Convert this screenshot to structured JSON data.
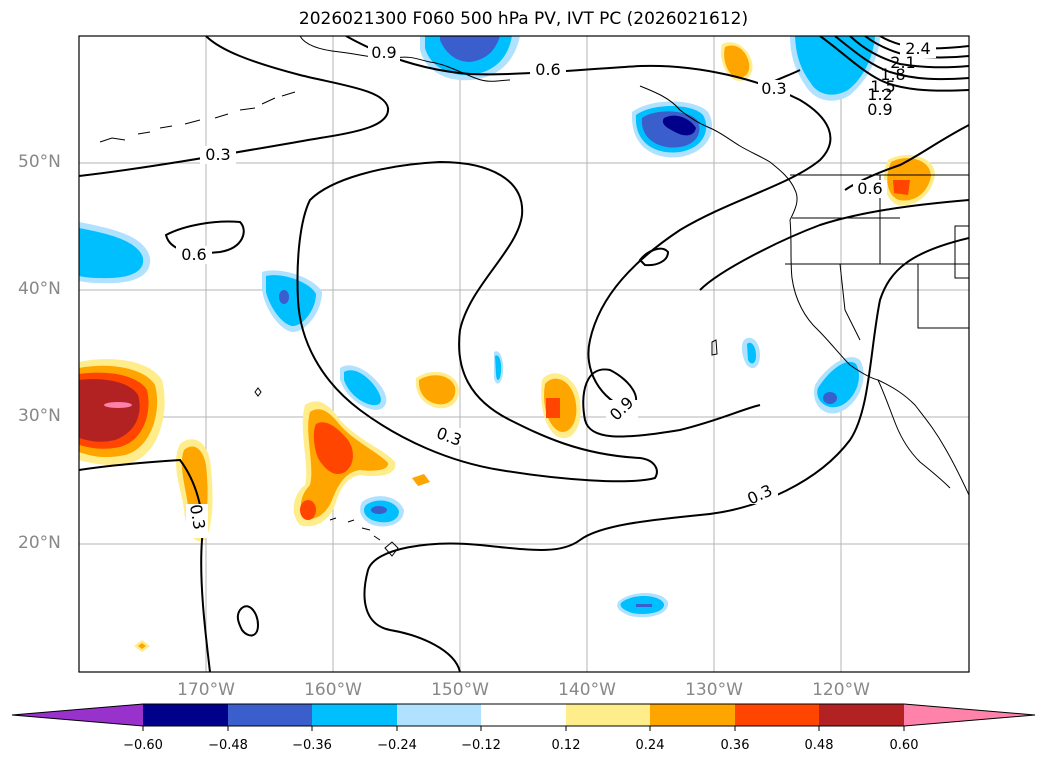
{
  "title": "2026021300 F060 500 hPa PV, IVT PC (2026021612)",
  "lat_labels": [
    "50°N",
    "40°N",
    "30°N",
    "20°N"
  ],
  "lon_labels": [
    "170°W",
    "160°W",
    "150°W",
    "140°W",
    "130°W",
    "120°W"
  ],
  "colorbar": {
    "ticks": [
      "−0.60",
      "−0.48",
      "−0.36",
      "−0.24",
      "−0.12",
      "0.12",
      "0.24",
      "0.36",
      "0.48",
      "0.60"
    ],
    "colors": [
      "#9932cc",
      "#00008b",
      "#3a5fcd",
      "#00bfff",
      "#b0e2ff",
      "#ffffff",
      "#ffec8b",
      "#ffa500",
      "#ff4500",
      "#b22222",
      "#ff82ab"
    ]
  },
  "contour_labels": [
    "0.9",
    "0.6",
    "0.3",
    "2.4",
    "2.1",
    "1.8",
    "1.5",
    "1.2",
    "0.9",
    "0.6",
    "0.3",
    "0.6",
    "0.3",
    "0.9",
    "0.3",
    "0.3"
  ]
}
